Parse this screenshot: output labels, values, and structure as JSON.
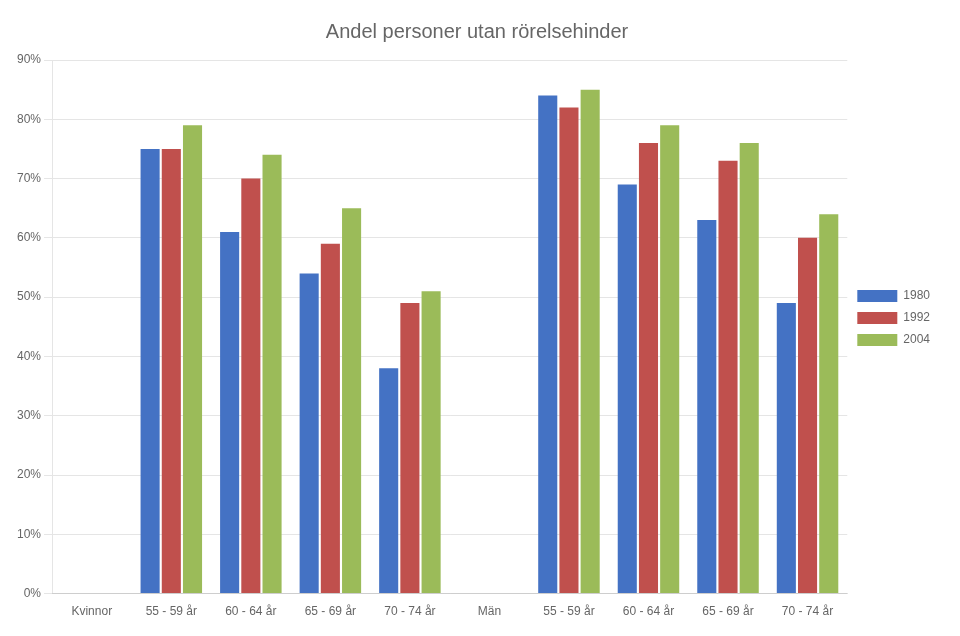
{
  "chart_data": {
    "type": "bar",
    "title": "Andel personer utan rörelsehinder",
    "categories": [
      "Kvinnor",
      "55 - 59 år",
      "60 - 64 år",
      "65 - 69 år",
      "70 - 74 år",
      "Män",
      "55 - 59 år",
      "60 - 64 år",
      "65 - 69 år",
      "70 - 74 år"
    ],
    "series": [
      {
        "name": "1980",
        "color": "#4472C4",
        "values": [
          null,
          75,
          61,
          54,
          38,
          null,
          84,
          69,
          63,
          49
        ]
      },
      {
        "name": "1992",
        "color": "#C0504D",
        "values": [
          null,
          75,
          70,
          59,
          49,
          null,
          82,
          76,
          73,
          60
        ]
      },
      {
        "name": "2004",
        "color": "#9BBB59",
        "values": [
          null,
          79,
          74,
          65,
          51,
          null,
          85,
          79,
          76,
          64
        ]
      }
    ],
    "ylim": [
      0,
      90
    ],
    "yticks": [
      {
        "value": 0,
        "label": "0%"
      },
      {
        "value": 10,
        "label": "10%"
      },
      {
        "value": 20,
        "label": "20%"
      },
      {
        "value": 30,
        "label": "30%"
      },
      {
        "value": 40,
        "label": "40%"
      },
      {
        "value": 50,
        "label": "50%"
      },
      {
        "value": 60,
        "label": "60%"
      },
      {
        "value": 70,
        "label": "70%"
      },
      {
        "value": 80,
        "label": "80%"
      },
      {
        "value": 90,
        "label": "90%"
      }
    ],
    "grid": true,
    "legend": "right"
  }
}
